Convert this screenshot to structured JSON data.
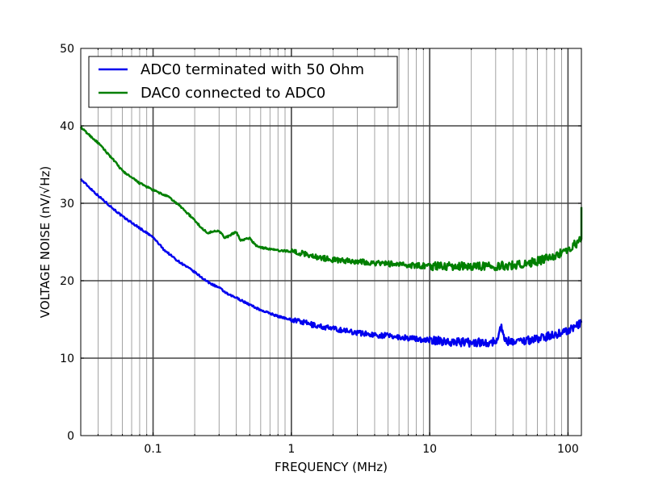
{
  "chart_data": {
    "type": "line",
    "title": "",
    "xlabel": "FREQUENCY (MHz)",
    "ylabel": "VOLTAGE NOISE (nV/√Hz)",
    "x_scale": "log",
    "xlim": [
      0.03,
      125
    ],
    "ylim": [
      0,
      50
    ],
    "x_ticks": [
      0.1,
      1,
      10,
      100
    ],
    "x_tick_labels": [
      "0.1",
      "1",
      "10",
      "100"
    ],
    "y_ticks": [
      0,
      10,
      20,
      30,
      40,
      50
    ],
    "y_tick_labels": [
      "0",
      "10",
      "20",
      "30",
      "40",
      "50"
    ],
    "grid": true,
    "legend_position": "top-left",
    "series": [
      {
        "name": "ADC0 terminated with 50 Ohm",
        "color": "#0000ee",
        "x": [
          0.03,
          0.04,
          0.05,
          0.06,
          0.07,
          0.08,
          0.1,
          0.12,
          0.15,
          0.2,
          0.25,
          0.3,
          0.35,
          0.4,
          0.5,
          0.6,
          0.7,
          0.8,
          1.0,
          1.5,
          2.0,
          3.0,
          4.0,
          5.0,
          7.0,
          10,
          15,
          20,
          30,
          33,
          35,
          40,
          50,
          60,
          70,
          80,
          100,
          110,
          120,
          125
        ],
        "y": [
          33.1,
          31.0,
          29.5,
          28.3,
          27.5,
          26.8,
          25.6,
          24.0,
          22.6,
          21.1,
          19.8,
          19.1,
          18.2,
          17.8,
          16.9,
          16.2,
          15.8,
          15.4,
          15.0,
          14.2,
          13.8,
          13.3,
          13.0,
          12.9,
          12.6,
          12.3,
          12.1,
          12.0,
          12.1,
          14.2,
          12.2,
          12.2,
          12.3,
          12.5,
          12.8,
          13.0,
          13.6,
          14.0,
          14.3,
          14.6
        ]
      },
      {
        "name": "DAC0 connected to ADC0",
        "color": "#007f00",
        "x": [
          0.03,
          0.04,
          0.05,
          0.06,
          0.07,
          0.08,
          0.1,
          0.13,
          0.16,
          0.2,
          0.23,
          0.25,
          0.3,
          0.33,
          0.4,
          0.43,
          0.5,
          0.55,
          0.6,
          0.7,
          0.8,
          1.0,
          1.3,
          1.5,
          2.0,
          3.0,
          4.0,
          5.0,
          7.0,
          10,
          15,
          20,
          30,
          40,
          50,
          60,
          70,
          80,
          100,
          110,
          120,
          125,
          125
        ],
        "y": [
          39.8,
          37.8,
          35.9,
          34.2,
          33.3,
          32.6,
          31.7,
          30.8,
          29.5,
          27.8,
          26.6,
          26.2,
          26.5,
          25.5,
          26.3,
          25.2,
          25.5,
          24.6,
          24.3,
          24.1,
          23.9,
          23.8,
          23.4,
          23.1,
          22.7,
          22.5,
          22.3,
          22.2,
          22.0,
          21.9,
          21.9,
          21.9,
          21.9,
          22.0,
          22.2,
          22.5,
          22.9,
          23.2,
          24.0,
          24.6,
          25.0,
          25.4,
          29.5
        ]
      }
    ]
  }
}
